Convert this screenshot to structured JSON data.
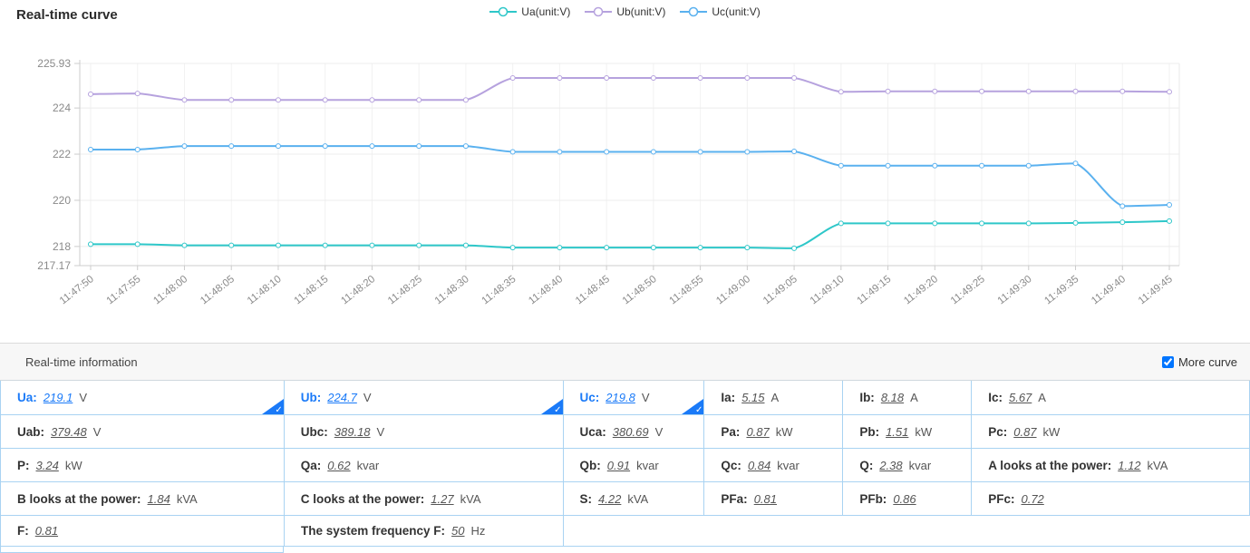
{
  "panel": {
    "title": "Real-time curve"
  },
  "chart_data": {
    "type": "line",
    "title": "Real-time curve",
    "legend_position": "top-center",
    "grid": true,
    "smooth": true,
    "ylim": [
      217.17,
      225.93
    ],
    "y_ticks": [
      {
        "v": 217.17,
        "label": "217.17"
      },
      {
        "v": 218,
        "label": "218"
      },
      {
        "v": 220,
        "label": "220"
      },
      {
        "v": 222,
        "label": "222"
      },
      {
        "v": 224,
        "label": "224"
      },
      {
        "v": 225.93,
        "label": "225.93"
      }
    ],
    "x": [
      "11:47:50",
      "11:47:55",
      "11:48:00",
      "11:48:05",
      "11:48:10",
      "11:48:15",
      "11:48:20",
      "11:48:25",
      "11:48:30",
      "11:48:35",
      "11:48:40",
      "11:48:45",
      "11:48:50",
      "11:48:55",
      "11:49:00",
      "11:49:05",
      "11:49:10",
      "11:49:15",
      "11:49:20",
      "11:49:25",
      "11:49:30",
      "11:49:35",
      "11:49:40",
      "11:49:45"
    ],
    "series": [
      {
        "name": "Ua(unit:V)",
        "color": "#2ec7c9",
        "values": [
          218.1,
          218.1,
          218.05,
          218.05,
          218.05,
          218.05,
          218.05,
          218.05,
          218.05,
          217.95,
          217.95,
          217.95,
          217.95,
          217.95,
          217.95,
          217.92,
          219.0,
          219.0,
          219.0,
          219.0,
          219.0,
          219.02,
          219.05,
          219.1
        ]
      },
      {
        "name": "Ub(unit:V)",
        "color": "#b6a2de",
        "values": [
          224.6,
          224.63,
          224.35,
          224.35,
          224.35,
          224.35,
          224.35,
          224.35,
          224.35,
          225.3,
          225.3,
          225.3,
          225.3,
          225.3,
          225.3,
          225.3,
          224.7,
          224.72,
          224.72,
          224.72,
          224.72,
          224.72,
          224.72,
          224.7
        ]
      },
      {
        "name": "Uc(unit:V)",
        "color": "#5ab1ef",
        "values": [
          222.2,
          222.2,
          222.35,
          222.35,
          222.35,
          222.35,
          222.35,
          222.35,
          222.35,
          222.1,
          222.1,
          222.1,
          222.1,
          222.1,
          222.1,
          222.12,
          221.5,
          221.5,
          221.5,
          221.5,
          221.5,
          221.6,
          219.75,
          219.8
        ]
      }
    ]
  },
  "info": {
    "header": "Real-time information",
    "more_curve_label": "More curve",
    "more_curve_checked": true,
    "accent_color": "#1a7af8",
    "border_color": "#a9d3f2",
    "rows": [
      [
        {
          "label": "Ua:",
          "value": "219.1",
          "unit": "V",
          "selected": true
        },
        {
          "label": "Ub:",
          "value": "224.7",
          "unit": "V",
          "selected": true
        },
        {
          "label": "Uc:",
          "value": "219.8",
          "unit": "V",
          "selected": true
        },
        {
          "label": "Ia:",
          "value": "5.15",
          "unit": "A"
        },
        {
          "label": "Ib:",
          "value": "8.18",
          "unit": "A"
        },
        {
          "label": "Ic:",
          "value": "5.67",
          "unit": "A"
        }
      ],
      [
        {
          "label": "Uab:",
          "value": "379.48",
          "unit": "V"
        },
        {
          "label": "Ubc:",
          "value": "389.18",
          "unit": "V"
        },
        {
          "label": "Uca:",
          "value": "380.69",
          "unit": "V"
        },
        {
          "label": "Pa:",
          "value": "0.87",
          "unit": "kW"
        },
        {
          "label": "Pb:",
          "value": "1.51",
          "unit": "kW"
        },
        {
          "label": "Pc:",
          "value": "0.87",
          "unit": "kW"
        }
      ],
      [
        {
          "label": "P:",
          "value": "3.24",
          "unit": "kW"
        },
        {
          "label": "Qa:",
          "value": "0.62",
          "unit": "kvar"
        },
        {
          "label": "Qb:",
          "value": "0.91",
          "unit": "kvar"
        },
        {
          "label": "Qc:",
          "value": "0.84",
          "unit": "kvar"
        },
        {
          "label": "Q:",
          "value": "2.38",
          "unit": "kvar"
        },
        {
          "label": "A looks at the power:",
          "value": "1.12",
          "unit": "kVA"
        }
      ],
      [
        {
          "label": "B looks at the power:",
          "value": "1.84",
          "unit": "kVA"
        },
        {
          "label": "C looks at the power:",
          "value": "1.27",
          "unit": "kVA"
        },
        {
          "label": "S:",
          "value": "4.22",
          "unit": "kVA"
        },
        {
          "label": "PFa:",
          "value": "0.81",
          "unit": ""
        },
        {
          "label": "PFb:",
          "value": "0.86",
          "unit": ""
        },
        {
          "label": "PFc:",
          "value": "0.72",
          "unit": ""
        }
      ],
      [
        {
          "label": "F:",
          "value": "0.81",
          "unit": ""
        },
        {
          "label": "The system frequency F:",
          "value": "50",
          "unit": "Hz"
        }
      ]
    ]
  }
}
